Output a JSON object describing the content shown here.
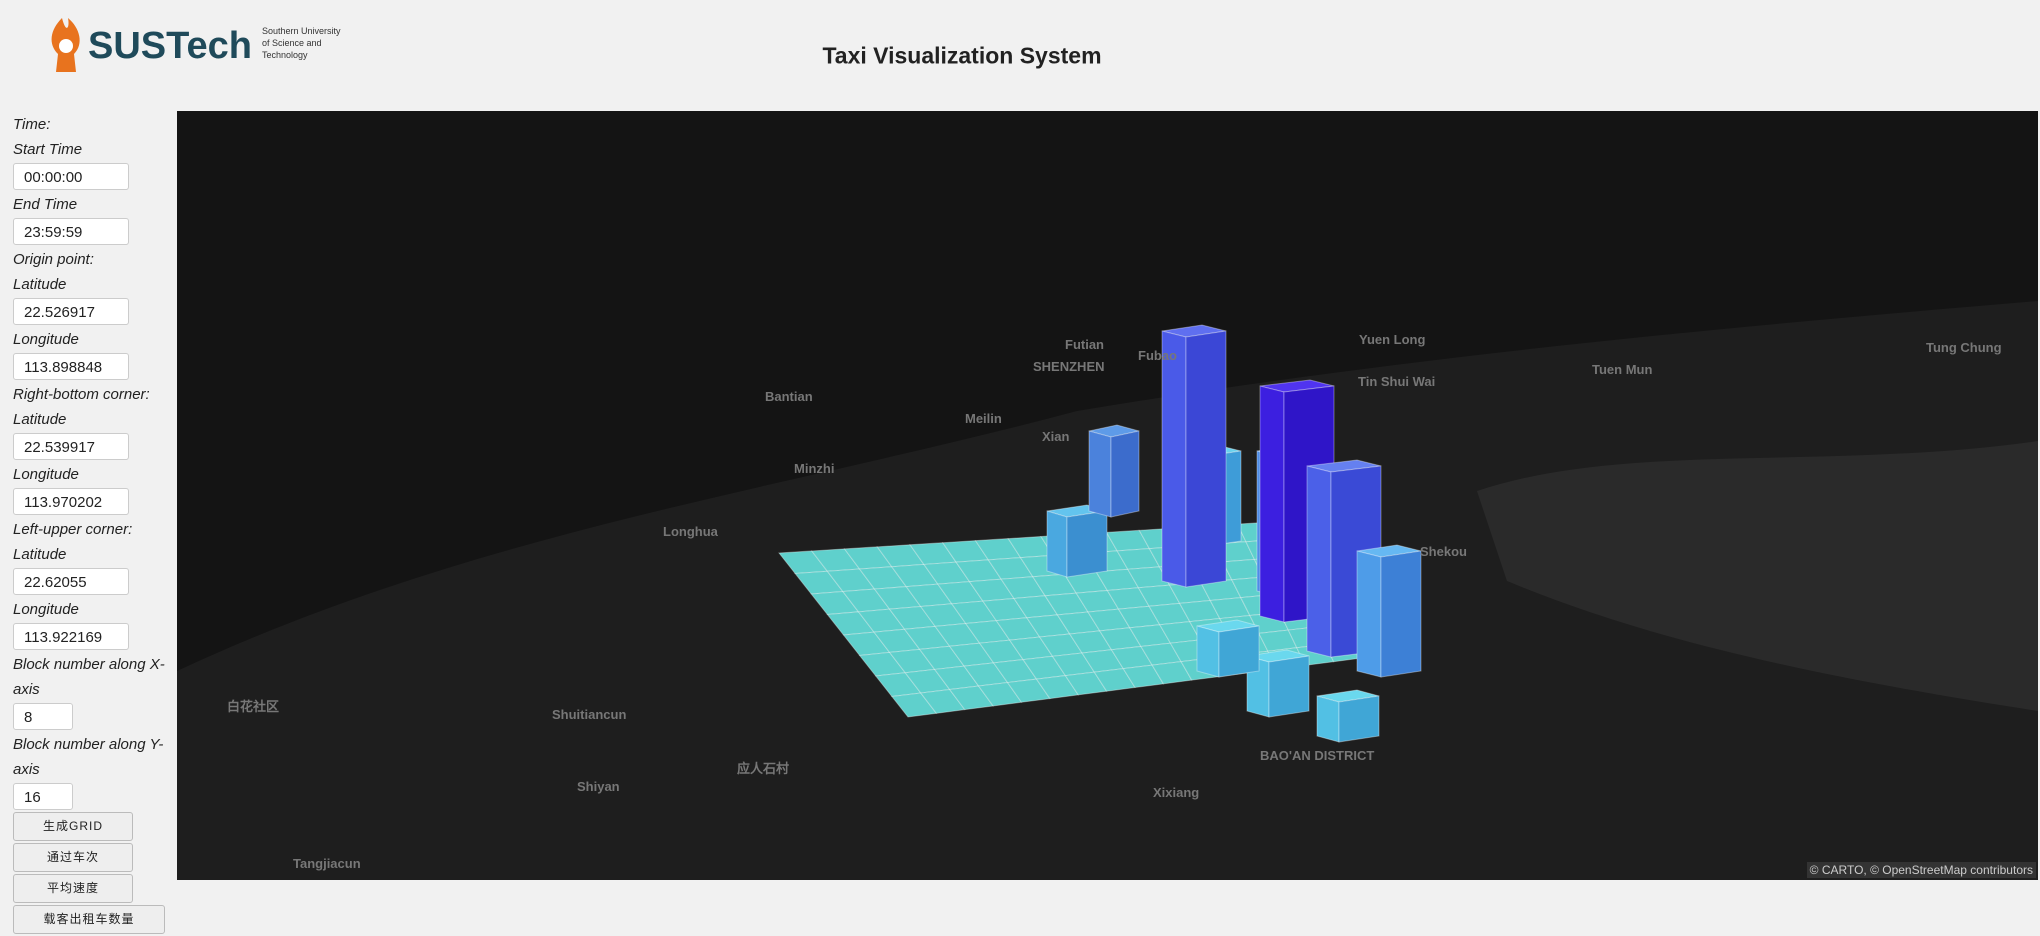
{
  "header": {
    "logo_name": "SUSTech",
    "logo_sub": [
      "Southern University",
      "of Science and",
      "Technology"
    ],
    "title": "Taxi Visualization System"
  },
  "sidebar": [
    {
      "kind": "label",
      "text": "Time:"
    },
    {
      "kind": "label",
      "text": "Start Time"
    },
    {
      "kind": "input",
      "text": "00:00:00"
    },
    {
      "kind": "label",
      "text": "End Time"
    },
    {
      "kind": "input",
      "text": "23:59:59"
    },
    {
      "kind": "label",
      "text": "Origin point:"
    },
    {
      "kind": "label",
      "text": "Latitude"
    },
    {
      "kind": "input",
      "text": "22.526917"
    },
    {
      "kind": "label",
      "text": "Longitude"
    },
    {
      "kind": "input",
      "text": "113.898848"
    },
    {
      "kind": "label",
      "text": "Right-bottom corner:"
    },
    {
      "kind": "label",
      "text": "Latitude"
    },
    {
      "kind": "input",
      "text": "22.539917"
    },
    {
      "kind": "label",
      "text": "Longitude"
    },
    {
      "kind": "input",
      "text": "113.970202"
    },
    {
      "kind": "label",
      "text": "Left-upper corner:"
    },
    {
      "kind": "label",
      "text": "Latitude"
    },
    {
      "kind": "input",
      "text": "22.62055"
    },
    {
      "kind": "label",
      "text": "Longitude"
    },
    {
      "kind": "input",
      "text": "113.922169"
    },
    {
      "kind": "label",
      "text": "Block number along X-axis"
    },
    {
      "kind": "small-input",
      "text": "8"
    },
    {
      "kind": "label",
      "text": "Block number along Y-axis"
    },
    {
      "kind": "small-input",
      "text": "16"
    },
    {
      "kind": "button",
      "text": "生成GRID"
    },
    {
      "kind": "button",
      "text": "通过车次"
    },
    {
      "kind": "button",
      "text": "平均速度"
    },
    {
      "kind": "button",
      "text": "载客出租车数量"
    }
  ],
  "map": {
    "labels": [
      "SHENZHEN",
      "Futian",
      "Fubao",
      "Bantian",
      "Meilin",
      "Minzhi",
      "Longhua",
      "Yuen Long",
      "Tin Shui Wai",
      "Tuen Mun",
      "Tung Chung",
      "Shekou",
      "BAO'AN DISTRICT",
      "Xixiang",
      "Shiyan",
      "Shuitiancun",
      "Tangjiacun",
      "白花社区",
      "应人石村",
      "Xian"
    ],
    "attribution": "© CARTO, © OpenStreetMap contributors"
  }
}
